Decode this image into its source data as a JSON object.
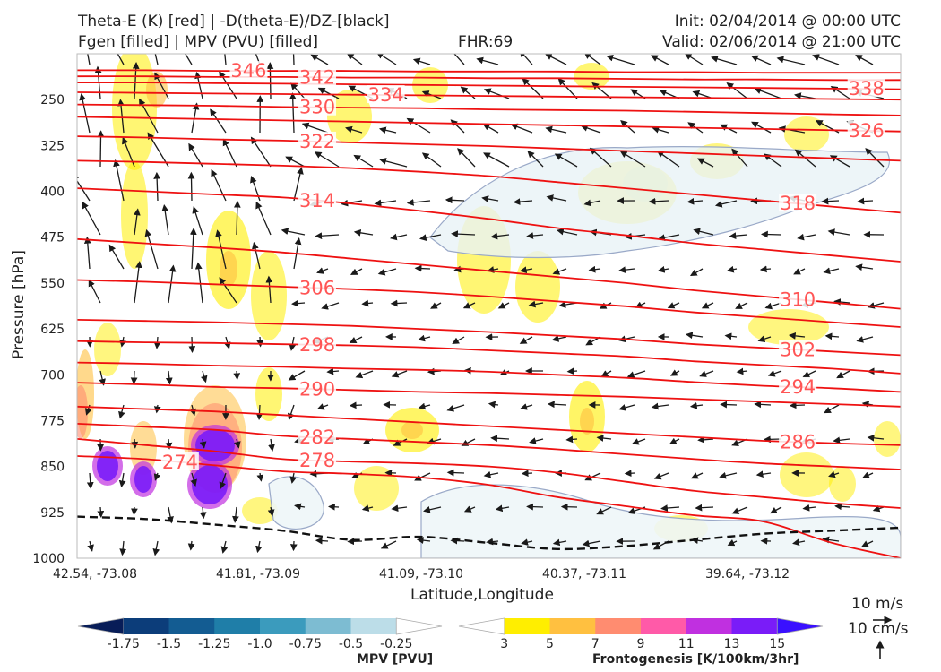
{
  "header": {
    "title_line1": "Theta-E (K) [red] | -D(theta-E)/DZ-[black]",
    "title_line2": "Fgen [filled] | MPV (PVU) [filled]",
    "fhr": "FHR:69",
    "init": "Init: 02/04/2014 @ 00:00 UTC",
    "valid": "Valid: 02/06/2014 @ 21:00 UTC"
  },
  "chart_data": {
    "type": "cross-section",
    "xlabel": "Latitude,Longitude",
    "ylabel": "Pressure [hPa]",
    "ylim": [
      1000,
      175
    ],
    "x_ticks": [
      "42.54, -73.08",
      "41.81, -73.09",
      "41.09, -73.10",
      "40.37, -73.11",
      "39.64, -73.12"
    ],
    "y_ticks": [
      250,
      325,
      400,
      475,
      550,
      625,
      700,
      775,
      850,
      925,
      1000
    ],
    "theta_e_contours": [
      {
        "value": "274",
        "label": "274",
        "p": [
          833,
          838,
          848,
          858,
          862,
          868,
          880,
          900,
          915,
          930,
          940,
          975,
          1000
        ]
      },
      {
        "value": "278",
        "label": "278",
        "p": [
          805,
          815,
          825,
          838,
          842,
          845,
          850,
          860,
          875,
          890,
          900,
          910,
          918
        ]
      },
      {
        "value": "282",
        "label": "282",
        "p": [
          780,
          785,
          790,
          800,
          805,
          810,
          815,
          822,
          830,
          838,
          845,
          850,
          855
        ]
      },
      {
        "value": "286",
        "label": "286",
        "p": [
          752,
          756,
          760,
          766,
          772,
          778,
          784,
          790,
          796,
          802,
          808,
          812,
          815
        ]
      },
      {
        "value": "290",
        "label": "290",
        "p": [
          713,
          716,
          720,
          722,
          725,
          728,
          730,
          733,
          736,
          740,
          744,
          748,
          752
        ]
      },
      {
        "value": "294",
        "label": "294",
        "p": [
          680,
          682,
          685,
          687,
          690,
          692,
          695,
          700,
          705,
          712,
          718,
          722,
          728
        ]
      },
      {
        "value": "298",
        "label": "298",
        "p": [
          645,
          647,
          648,
          650,
          652,
          655,
          660,
          665,
          670,
          678,
          684,
          690,
          698
        ]
      },
      {
        "value": "302",
        "label": "302",
        "p": [
          610,
          612,
          614,
          617,
          620,
          625,
          630,
          636,
          642,
          650,
          656,
          662,
          668
        ]
      },
      {
        "value": "306",
        "label": "306",
        "p": [
          545,
          548,
          552,
          556,
          560,
          565,
          572,
          580,
          588,
          598,
          606,
          614,
          622
        ]
      },
      {
        "value": "310",
        "label": "310",
        "p": [
          478,
          485,
          492,
          500,
          510,
          520,
          530,
          540,
          550,
          562,
          572,
          582,
          592
        ]
      },
      {
        "value": "314",
        "label": "314",
        "p": [
          395,
          400,
          405,
          410,
          420,
          432,
          445,
          460,
          472,
          485,
          495,
          505,
          515
        ]
      },
      {
        "value": "318",
        "label": "318",
        "p": [
          350,
          352,
          355,
          358,
          362,
          368,
          375,
          385,
          395,
          405,
          415,
          425,
          435
        ]
      },
      {
        "value": "322",
        "label": "322",
        "p": [
          310,
          312,
          315,
          317,
          320,
          323,
          326,
          330,
          334,
          338,
          342,
          346,
          350
        ]
      },
      {
        "value": "326",
        "label": "326",
        "p": [
          278,
          280,
          282,
          284,
          286,
          288,
          290,
          292,
          294,
          296,
          298,
          300,
          302
        ]
      },
      {
        "value": "330",
        "label": "330",
        "p": [
          258,
          259,
          260,
          262,
          263,
          264,
          266,
          267,
          268,
          270,
          272,
          274,
          276
        ]
      },
      {
        "value": "334",
        "label": "334",
        "p": [
          238,
          239,
          240,
          241,
          242,
          243,
          244,
          245,
          246,
          247,
          248,
          249,
          250
        ]
      },
      {
        "value": "338",
        "label": "338",
        "p": [
          222,
          222,
          223,
          224,
          225,
          226,
          227,
          228,
          229,
          230,
          231,
          232,
          233
        ]
      },
      {
        "value": "342",
        "label": "342",
        "p": [
          212,
          212,
          213,
          213,
          214,
          214,
          215,
          215,
          216,
          217,
          217,
          218,
          218
        ]
      },
      {
        "value": "346",
        "label": "346",
        "p": [
          202,
          202,
          203,
          203,
          203,
          204,
          204,
          204,
          205,
          205,
          206,
          206,
          206
        ]
      }
    ],
    "black_dashed_contour_p": [
      932,
      936,
      945,
      955,
      970,
      965,
      975,
      985,
      980,
      970,
      960,
      955,
      950
    ]
  },
  "legend": {
    "mpv": {
      "label": "MPV [PVU]",
      "ticks": [
        "-1.75",
        "-1.5",
        "-1.25",
        "-1.0",
        "-0.75",
        "-0.5",
        "-0.25"
      ],
      "colors": [
        "#081d58",
        "#0c3d7a",
        "#135c92",
        "#1f7ea8",
        "#3b9bbd",
        "#7dbcd2",
        "#bcdde8",
        "#ffffff"
      ]
    },
    "fgen": {
      "label": "Frontogenesis [K/100km/3hr]",
      "ticks": [
        "3",
        "5",
        "7",
        "9",
        "11",
        "13",
        "15"
      ],
      "colors": [
        "#ffffff",
        "#ffee00",
        "#ffc040",
        "#ff8c70",
        "#ff5aa8",
        "#c030e0",
        "#7a1cf8",
        "#3a10ff"
      ]
    }
  },
  "wind_key": {
    "horizontal": "10 m/s",
    "vertical": "10 cm/s"
  }
}
